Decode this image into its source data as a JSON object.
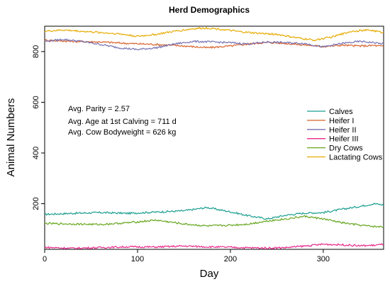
{
  "chart_data": {
    "type": "line",
    "title": "Herd Demographics",
    "xlabel": "Day",
    "ylabel": "Animal Numbers",
    "xlim": [
      0,
      365
    ],
    "ylim": [
      20,
      900
    ],
    "xticks": [
      0,
      100,
      200,
      300
    ],
    "yticks": [
      200,
      400,
      600,
      800
    ],
    "grid": false,
    "legend_position": "right-center",
    "annotations": [
      "Avg. Parity = 2.57",
      "Avg. Age at 1st Calving = 711 d",
      "Avg. Cow Bodyweight = 626 kg"
    ],
    "series": [
      {
        "name": "Calves",
        "color": "#1a9e8f",
        "x": [
          0,
          30,
          60,
          90,
          120,
          150,
          175,
          200,
          220,
          240,
          260,
          280,
          300,
          320,
          340,
          355,
          365
        ],
        "values": [
          158,
          162,
          165,
          162,
          167,
          172,
          185,
          168,
          152,
          140,
          155,
          163,
          165,
          178,
          190,
          200,
          195
        ]
      },
      {
        "name": "Heifer I",
        "color": "#d9622b",
        "x": [
          0,
          30,
          60,
          90,
          120,
          150,
          175,
          200,
          220,
          240,
          260,
          280,
          300,
          320,
          340,
          355,
          365
        ],
        "values": [
          845,
          840,
          838,
          832,
          828,
          822,
          815,
          822,
          830,
          836,
          832,
          826,
          820,
          825,
          822,
          824,
          820
        ]
      },
      {
        "name": "Heifer II",
        "color": "#7570b3",
        "x": [
          0,
          20,
          40,
          60,
          80,
          100,
          120,
          140,
          160,
          180,
          200,
          220,
          240,
          260,
          280,
          300,
          320,
          340,
          355,
          365
        ],
        "values": [
          840,
          848,
          840,
          828,
          815,
          808,
          815,
          830,
          840,
          838,
          835,
          830,
          838,
          835,
          832,
          818,
          832,
          840,
          835,
          830
        ]
      },
      {
        "name": "Heifer III",
        "color": "#e7298a",
        "x": [
          0,
          30,
          60,
          90,
          120,
          150,
          175,
          200,
          220,
          240,
          260,
          280,
          300,
          320,
          340,
          355,
          365
        ],
        "values": [
          28,
          24,
          27,
          30,
          29,
          33,
          30,
          28,
          26,
          25,
          27,
          33,
          40,
          38,
          34,
          36,
          40
        ]
      },
      {
        "name": "Dry Cows",
        "color": "#66a61e",
        "x": [
          0,
          30,
          60,
          90,
          120,
          150,
          175,
          200,
          220,
          240,
          260,
          280,
          300,
          320,
          340,
          355,
          365
        ],
        "values": [
          122,
          120,
          118,
          125,
          135,
          120,
          112,
          115,
          120,
          132,
          140,
          150,
          140,
          125,
          115,
          110,
          108
        ]
      },
      {
        "name": "Lactating Cows",
        "color": "#e6ab02",
        "x": [
          0,
          20,
          40,
          60,
          80,
          100,
          120,
          140,
          160,
          175,
          190,
          210,
          230,
          250,
          270,
          290,
          310,
          330,
          350,
          365
        ],
        "values": [
          880,
          885,
          880,
          875,
          870,
          860,
          868,
          880,
          890,
          893,
          888,
          878,
          872,
          868,
          855,
          845,
          858,
          880,
          885,
          875
        ]
      }
    ]
  }
}
